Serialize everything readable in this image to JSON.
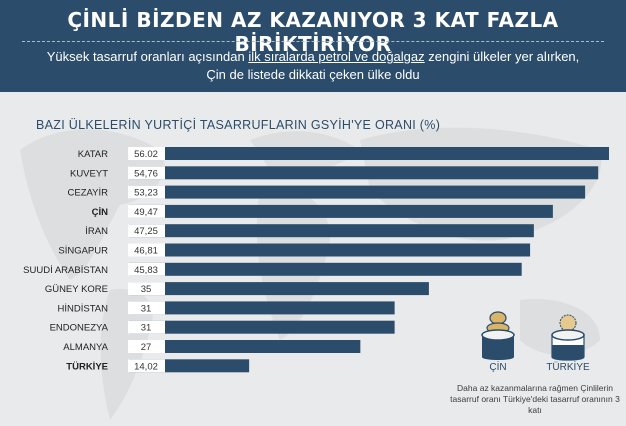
{
  "header": {
    "title": "ÇİNLİ BİZDEN AZ KAZANIYOR 3 KAT FAZLA BİRİKTİRİYOR",
    "subtitle_pre": "Yüksek tasarruf oranları açısından ",
    "subtitle_link": "ilk sıralarda petrol ve doğalgaz",
    "subtitle_post": " zengini ülkeler yer alırken, Çin de listede dikkati çeken ülke oldu"
  },
  "colors": {
    "banner": "#2b4c6a",
    "bar": "#2b4c6a",
    "value_box": "#ffffff",
    "coin": "#d9b56a"
  },
  "chart_data": {
    "type": "bar",
    "orientation": "horizontal",
    "title": "BAZI ÜLKELERİN YURTİÇİ TASARRUFLARIN GSYİH'YE ORANI (%)",
    "categories": [
      "KATAR",
      "KUVEYT",
      "CEZAYİR",
      "ÇİN",
      "İRAN",
      "SİNGAPUR",
      "SUUDİ ARABİSTAN",
      "GÜNEY KORE",
      "HİNDİSTAN",
      "ENDONEZYA",
      "ALMANYA",
      "TÜRKİYE"
    ],
    "value_labels": [
      "56.02",
      "54,76",
      "53,23",
      "49,47",
      "47,25",
      "46,81",
      "45,83",
      "35",
      "31",
      "31",
      "27",
      "14,02"
    ],
    "values": [
      56.02,
      54.76,
      53.23,
      49.47,
      47.25,
      46.81,
      45.83,
      35,
      31,
      31,
      27,
      14.02
    ],
    "highlighted": [
      "ÇİN",
      "TÜRKİYE"
    ],
    "xlim": [
      0,
      56.02
    ],
    "grid": false,
    "legend": "none"
  },
  "infographic": {
    "left_label": "ÇİN",
    "right_label": "TÜRKİYE",
    "caption": "Daha az kazanmalarına rağmen Çinlilerin tasarruf oranı Türkiye'deki tasarruf oranının 3 katı"
  }
}
